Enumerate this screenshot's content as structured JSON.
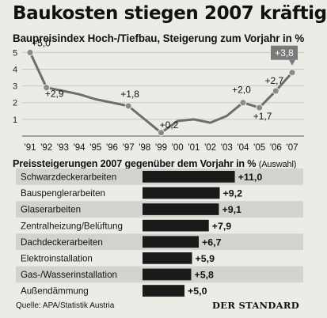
{
  "header": {
    "title": "Baukosten stiegen 2007 kräftig",
    "subtitle": "Baupreisindex Hoch-/Tiefbau, Steigerung zum Vorjahr in %"
  },
  "bar_section": {
    "title": "Preissteigerungen 2007 gegenüber dem Vorjahr in %",
    "title_note": "(Auswahl)"
  },
  "footer": {
    "source": "Quelle:  APA/Statistik Austria",
    "publisher": "DER STANDARD"
  },
  "colors": {
    "background": "#ecebe6",
    "gridline": "#c8c7c2",
    "line": "#6d6d6d",
    "marker": "#8a8a8a",
    "highlight_box": "#7a7a7a",
    "bar": "#1a1a1a",
    "row_shade": "#d3d2cd"
  },
  "chart_data": [
    {
      "type": "line",
      "title": "Baupreisindex Hoch-/Tiefbau, Steigerung zum Vorjahr in %",
      "x": [
        "'91",
        "'92",
        "'93",
        "'94",
        "'95",
        "'96",
        "'97",
        "'98",
        "'99",
        "'00",
        "'01",
        "'02",
        "'03",
        "'04",
        "'05",
        "'06",
        "'07"
      ],
      "series": [
        {
          "values": [
            5.0,
            2.9,
            2.7,
            2.5,
            2.2,
            2.0,
            1.8,
            1.0,
            0.2,
            0.9,
            1.0,
            0.8,
            1.2,
            2.0,
            1.7,
            2.7,
            3.8
          ]
        }
      ],
      "y_ticks": [
        1,
        2,
        3,
        4,
        5
      ],
      "ylim": [
        0,
        5.3
      ],
      "grid": true,
      "point_labels": [
        {
          "x": "'91",
          "label": "+5,0"
        },
        {
          "x": "'92",
          "label": "+2,9"
        },
        {
          "x": "'97",
          "label": "+1,8"
        },
        {
          "x": "'99",
          "label": "+0,2"
        },
        {
          "x": "'04",
          "label": "+2,0"
        },
        {
          "x": "'05",
          "label": "+1,7"
        },
        {
          "x": "'06",
          "label": "+2,7"
        },
        {
          "x": "'07",
          "label": "+3,8"
        }
      ]
    },
    {
      "type": "bar",
      "title": "Preissteigerungen 2007 gegenüber dem Vorjahr in % (Auswahl)",
      "orientation": "horizontal",
      "categories": [
        "Schwarzdeckerarbeiten",
        "Bauspenglerarbeiten",
        "Glaserarbeiten",
        "Zentralheizung/Belüftung",
        "Dachdeckerarbeiten",
        "Elektroinstallation",
        "Gas-/Wasserinstallation",
        "Außendämmung"
      ],
      "values": [
        11.0,
        9.2,
        9.1,
        7.9,
        6.7,
        5.9,
        5.8,
        5.0
      ],
      "labels": [
        "+11,0",
        "+9,2",
        "+9,1",
        "+7,9",
        "+6,7",
        "+5,9",
        "+5,8",
        "+5,0"
      ]
    }
  ]
}
